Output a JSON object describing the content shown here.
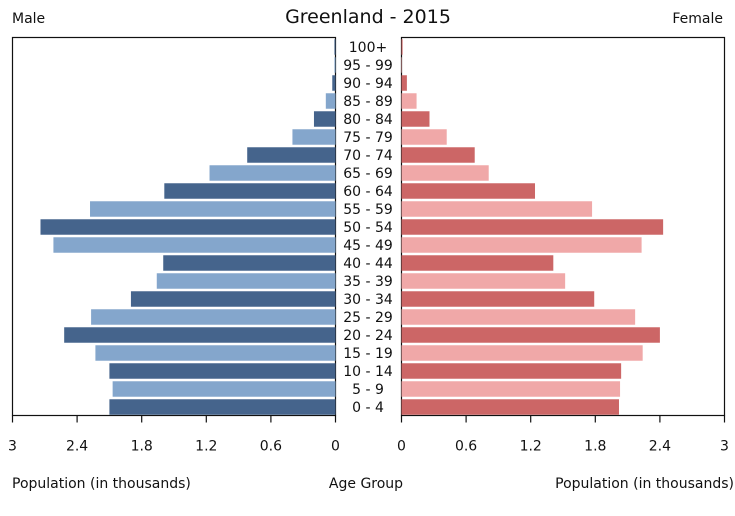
{
  "chart_data": {
    "type": "bar",
    "orientation": "horizontal",
    "subtype": "population-pyramid",
    "title": "Greenland - 2015",
    "left_label": "Male",
    "right_label": "Female",
    "center_label": "Age Group",
    "xlabel_left": "Population (in thousands)",
    "xlabel_right": "Population (in thousands)",
    "xlim": [
      0,
      3
    ],
    "ticks": [
      "0",
      "0.6",
      "1.2",
      "1.8",
      "2.4",
      "3"
    ],
    "tick_values": [
      0,
      0.6,
      1.2,
      1.8,
      2.4,
      3
    ],
    "grid": false,
    "categories": [
      "100+",
      "95 - 99",
      "90 - 94",
      "85 - 89",
      "80 - 84",
      "75 - 79",
      "70 - 74",
      "65 - 69",
      "60 - 64",
      "55 - 59",
      "50 - 54",
      "45 - 49",
      "40 - 44",
      "35 - 39",
      "30 - 34",
      "25 - 29",
      "20 - 24",
      "15 - 19",
      "10 - 14",
      "5 - 9",
      "0 - 4"
    ],
    "series": [
      {
        "name": "Male",
        "colors": [
          "#45648c",
          "#84a6cc"
        ],
        "values": [
          0.01,
          0.01,
          0.03,
          0.09,
          0.2,
          0.4,
          0.82,
          1.17,
          1.59,
          2.28,
          2.74,
          2.62,
          1.6,
          1.66,
          1.9,
          2.27,
          2.52,
          2.23,
          2.1,
          2.07,
          2.1
        ]
      },
      {
        "name": "Female",
        "colors": [
          "#cc6666",
          "#f0a8a8"
        ],
        "values": [
          0.01,
          0.005,
          0.05,
          0.14,
          0.26,
          0.42,
          0.68,
          0.81,
          1.24,
          1.77,
          2.43,
          2.23,
          1.41,
          1.52,
          1.79,
          2.17,
          2.4,
          2.24,
          2.04,
          2.03,
          2.02
        ]
      }
    ]
  }
}
